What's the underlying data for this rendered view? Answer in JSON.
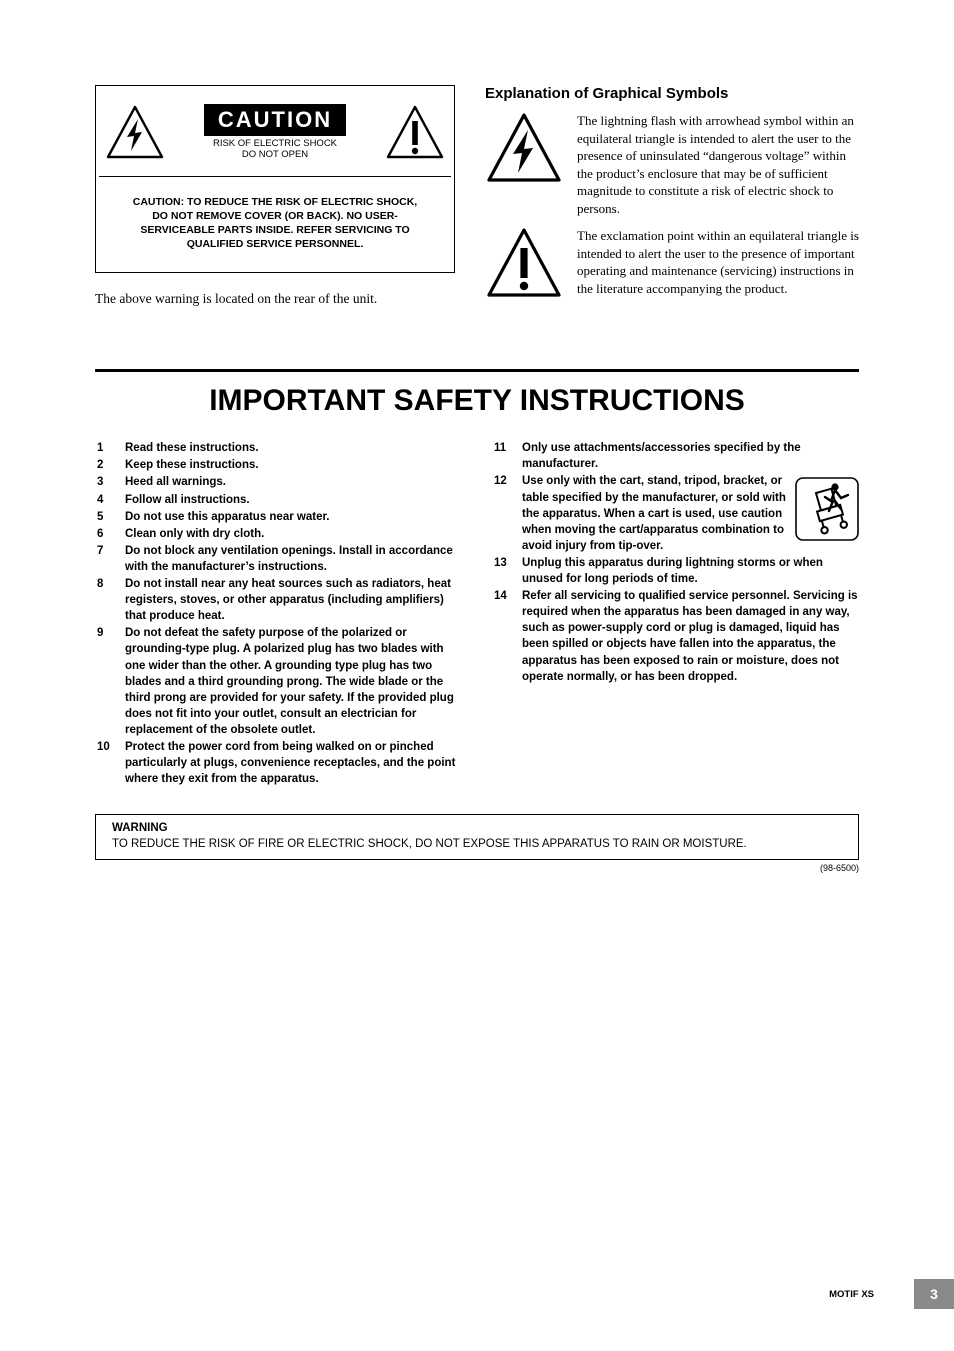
{
  "caution_box": {
    "title": "CAUTION",
    "subtitle_line1": "RISK OF ELECTRIC SHOCK",
    "subtitle_line2": "DO NOT OPEN",
    "body": "CAUTION: TO REDUCE THE RISK OF ELECTRIC SHOCK, DO NOT REMOVE COVER (OR BACK). NO USER-SERVICEABLE PARTS INSIDE. REFER SERVICING TO QUALIFIED SERVICE PERSONNEL."
  },
  "caution_note": "The above warning is located on the rear of the unit.",
  "explanation": {
    "title": "Explanation of Graphical Symbols",
    "lightning_text": "The lightning flash with arrowhead symbol within an equilateral triangle is intended to alert the user to the presence of uninsulated “dangerous voltage” within the product’s enclosure that may be of sufficient magnitude to constitute a risk of electric shock to persons.",
    "exclamation_text": "The exclamation point within an equilateral triangle is intended to alert the user to the presence of important operating and maintenance (servicing) instructions in the literature accompanying the product."
  },
  "main_title": "IMPORTANT SAFETY INSTRUCTIONS",
  "instructions_left": [
    {
      "n": "1",
      "t": "Read these instructions."
    },
    {
      "n": "2",
      "t": "Keep these instructions."
    },
    {
      "n": "3",
      "t": "Heed all warnings."
    },
    {
      "n": "4",
      "t": "Follow all instructions."
    },
    {
      "n": "5",
      "t": "Do not use this apparatus near water."
    },
    {
      "n": "6",
      "t": "Clean only with dry cloth."
    },
    {
      "n": "7",
      "t": "Do not block any ventilation openings. Install in accordance with the manufacturer’s instructions."
    },
    {
      "n": "8",
      "t": "Do not install near any heat sources such as radiators, heat registers, stoves, or other apparatus (including amplifiers) that produce heat."
    },
    {
      "n": "9",
      "t": "Do not defeat the safety purpose of the polarized or grounding-type plug. A polarized plug has two blades with one wider than the other. A grounding type plug has two blades and a third grounding prong. The wide blade or the third prong are provided for your safety. If the provided plug does not fit into your outlet, consult an electrician for replacement of the obsolete outlet."
    },
    {
      "n": "10",
      "t": "Protect the power cord from being walked on or pinched particularly at plugs, convenience receptacles, and the point where they exit from the apparatus."
    }
  ],
  "instructions_right": [
    {
      "n": "11",
      "t": "Only use attachments/accessories specified by the manufacturer."
    },
    {
      "n": "12",
      "t": "Use only with the cart, stand, tripod, bracket, or table specified by the manufacturer, or sold with the apparatus. When a cart is used, use caution when moving the cart/apparatus combination to avoid injury from tip-over.",
      "icon": true
    },
    {
      "n": "13",
      "t": "Unplug this apparatus during lightning storms or when unused for long periods of time."
    },
    {
      "n": "14",
      "t": "Refer all servicing to qualified service personnel. Servicing is required when the apparatus has been damaged in any way, such as power-supply cord or plug is damaged, liquid has been spilled or objects have fallen into the apparatus, the apparatus has been exposed to rain or moisture, does not operate normally, or has been dropped."
    }
  ],
  "warning": {
    "heading": "WARNING",
    "body": "TO REDUCE THE RISK OF FIRE OR ELECTRIC SHOCK, DO NOT EXPOSE THIS APPARATUS TO RAIN OR MOISTURE."
  },
  "doc_code": "(98-6500)",
  "footer": {
    "label": "MOTIF XS",
    "page": "3"
  },
  "colors": {
    "black": "#000000",
    "white": "#ffffff",
    "gray": "#8a8a8a"
  }
}
